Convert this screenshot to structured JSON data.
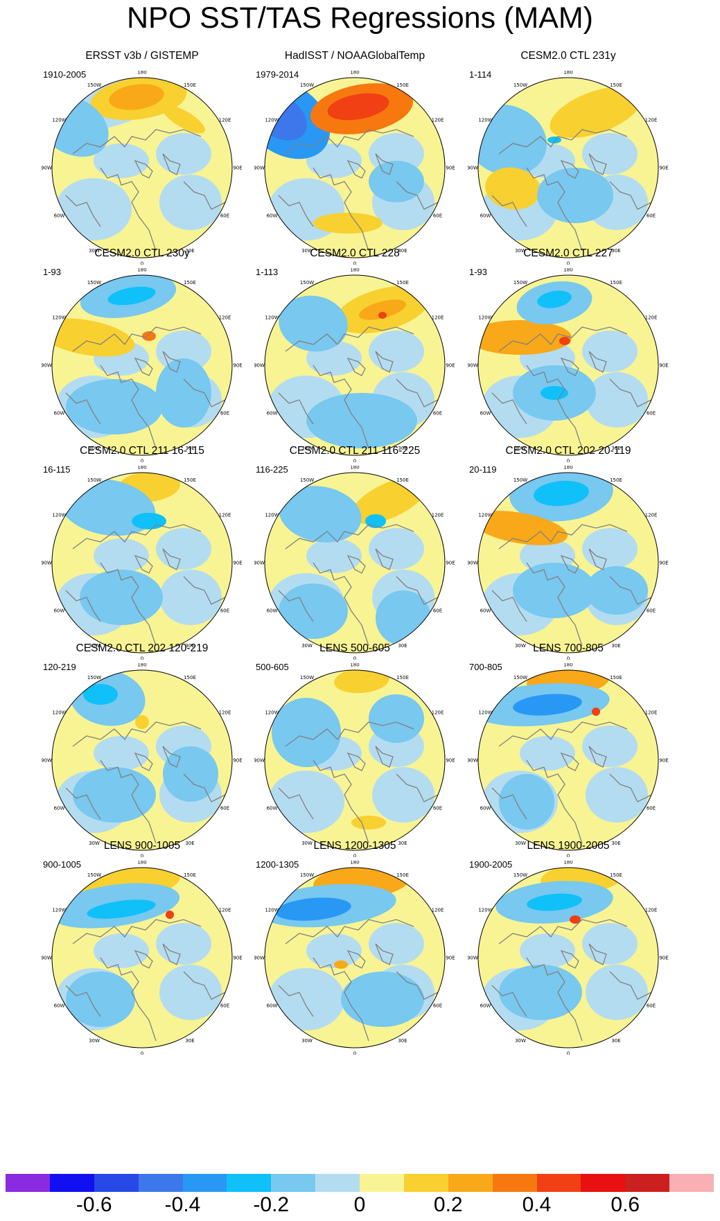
{
  "title": "NPO SST/TAS Regressions (MAM)",
  "lon_labels": [
    "180",
    "150E",
    "120E",
    "90E",
    "60E",
    "30E",
    "0",
    "30W",
    "60W",
    "90W",
    "120W",
    "150W"
  ],
  "colorbar": {
    "colors": [
      "#8a2be2",
      "#1010f0",
      "#2848e8",
      "#3c78ec",
      "#2898f4",
      "#10c0f8",
      "#78c8f0",
      "#b4dcf0",
      "#f8f494",
      "#f8d030",
      "#f8a818",
      "#f87810",
      "#f04014",
      "#e81010",
      "#cc2020",
      "#f8b0b4"
    ],
    "tick_labels": [
      "-0.6",
      "-0.4",
      "-0.2",
      "0",
      "0.2",
      "0.4",
      "0.6"
    ]
  },
  "panels": [
    {
      "title": "ERSST v3b / GISTEMP",
      "period": "1910-2005"
    },
    {
      "title": "HadISST / NOAAGlobalTemp",
      "period": "1979-2014"
    },
    {
      "title": "CESM2.0 CTL 231y",
      "period": "1-114"
    },
    {
      "title": "CESM2.0 CTL 230y",
      "period": "1-93"
    },
    {
      "title": "CESM2.0 CTL 228",
      "period": "1-113"
    },
    {
      "title": "CESM2.0 CTL 227",
      "period": "1-93"
    },
    {
      "title": "CESM2.0 CTL 211 16-115",
      "period": "16-115"
    },
    {
      "title": "CESM2.0 CTL 211 116-225",
      "period": "116-225"
    },
    {
      "title": "CESM2.0 CTL 202 20-119",
      "period": "20-119"
    },
    {
      "title": "CESM2.0 CTL 202 120-219",
      "period": "120-219"
    },
    {
      "title": "LENS 500-605",
      "period": "500-605"
    },
    {
      "title": "LENS 700-805",
      "period": "700-805"
    },
    {
      "title": "LENS 900-1005",
      "period": "900-1005"
    },
    {
      "title": "LENS 1200-1305",
      "period": "1200-1305"
    },
    {
      "title": "LENS 1900-2005",
      "period": "1900-2005"
    }
  ]
}
